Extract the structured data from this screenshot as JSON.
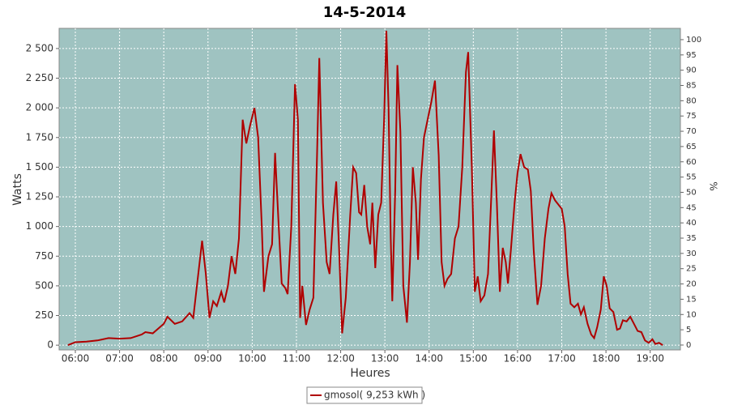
{
  "chart_data": {
    "type": "line",
    "title": "14-5-2014",
    "xlabel": "Heures",
    "ylabel": "Watts",
    "y2label": "%",
    "grid": true,
    "legend": "bottom",
    "background": "#9fc3c1",
    "xlim": [
      "05:38",
      "19:41"
    ],
    "xticks": [
      "06:00",
      "07:00",
      "08:00",
      "09:00",
      "10:00",
      "11:00",
      "12:00",
      "13:00",
      "14:00",
      "15:00",
      "16:00",
      "17:00",
      "18:00",
      "19:00"
    ],
    "ylim": [
      -40,
      2670
    ],
    "yticks": [
      0,
      250,
      500,
      750,
      {
        "value": 1000,
        "label": "1 000"
      },
      {
        "value": 1250,
        "label": "1 250"
      },
      {
        "value": 1500,
        "label": "1 500"
      },
      {
        "value": 1750,
        "label": "1 750"
      },
      {
        "value": 2000,
        "label": "2 000"
      },
      {
        "value": 2250,
        "label": "2 250"
      },
      {
        "value": 2500,
        "label": "2 500"
      }
    ],
    "y2lim": [
      -1.6,
      103.7
    ],
    "y2ticks": [
      0,
      5,
      10,
      15,
      20,
      25,
      30,
      35,
      40,
      45,
      50,
      55,
      60,
      65,
      70,
      75,
      80,
      85,
      90,
      95,
      100
    ],
    "x": [
      "05:50",
      "06:00",
      "06:15",
      "06:30",
      "06:45",
      "07:00",
      "07:15",
      "07:30",
      "07:35",
      "07:45",
      "08:00",
      "08:05",
      "08:15",
      "08:25",
      "08:35",
      "08:40",
      "08:45",
      "08:52",
      "08:57",
      "09:02",
      "09:07",
      "09:12",
      "09:18",
      "09:22",
      "09:27",
      "09:32",
      "09:37",
      "09:42",
      "09:47",
      "09:52",
      "09:57",
      "10:03",
      "10:08",
      "10:13",
      "10:16",
      "10:22",
      "10:27",
      "10:31",
      "10:36",
      "10:40",
      "10:45",
      "10:48",
      "10:53",
      "10:58",
      "11:02",
      "11:05",
      "11:08",
      "11:13",
      "11:18",
      "11:23",
      "11:28",
      "11:31",
      "11:36",
      "11:41",
      "11:45",
      "11:50",
      "11:54",
      "11:58",
      "12:02",
      "12:07",
      "12:13",
      "12:17",
      "12:21",
      "12:25",
      "12:28",
      "12:32",
      "12:36",
      "12:40",
      "12:43",
      "12:47",
      "12:51",
      "12:55",
      "12:59",
      "13:02",
      "13:05",
      "13:08",
      "13:10",
      "13:14",
      "13:17",
      "13:21",
      "13:25",
      "13:30",
      "13:34",
      "13:38",
      "13:42",
      "13:45",
      "13:49",
      "13:53",
      "13:58",
      "14:03",
      "14:08",
      "14:13",
      "14:17",
      "14:21",
      "14:25",
      "14:30",
      "14:35",
      "14:40",
      "14:45",
      "14:50",
      "14:53",
      "14:58",
      "15:02",
      "15:06",
      "15:10",
      "15:15",
      "15:20",
      "15:24",
      "15:28",
      "15:32",
      "15:36",
      "15:40",
      "15:44",
      "15:47",
      "15:51",
      "15:56",
      "16:00",
      "16:04",
      "16:09",
      "16:14",
      "16:18",
      "16:22",
      "16:27",
      "16:32",
      "16:37",
      "16:42",
      "16:46",
      "16:51",
      "16:56",
      "17:00",
      "17:04",
      "17:08",
      "17:12",
      "17:17",
      "17:22",
      "17:26",
      "17:30",
      "17:35",
      "17:40",
      "17:44",
      "17:48",
      "17:53",
      "17:57",
      "18:01",
      "18:05",
      "18:10",
      "18:15",
      "18:19",
      "18:23",
      "18:28",
      "18:33",
      "18:38",
      "18:43",
      "18:48",
      "18:53",
      "18:58",
      "19:03",
      "19:07",
      "19:12",
      "19:17"
    ],
    "series": [
      {
        "name": "gmosol( 9,253 kWh )",
        "color": "#b00000",
        "values": [
          0,
          25,
          30,
          40,
          60,
          55,
          60,
          90,
          110,
          100,
          180,
          240,
          180,
          200,
          270,
          230,
          500,
          880,
          600,
          230,
          370,
          330,
          450,
          360,
          500,
          750,
          600,
          900,
          1900,
          1700,
          1850,
          2000,
          1750,
          1000,
          450,
          750,
          850,
          1620,
          1000,
          520,
          480,
          430,
          1000,
          2200,
          1900,
          230,
          500,
          170,
          300,
          400,
          1600,
          2420,
          1200,
          700,
          600,
          1100,
          1380,
          800,
          100,
          400,
          1100,
          1500,
          1450,
          1120,
          1100,
          1350,
          1000,
          850,
          1200,
          650,
          1100,
          1200,
          1900,
          2650,
          2000,
          900,
          370,
          1300,
          2360,
          1800,
          500,
          190,
          700,
          1500,
          1200,
          720,
          1400,
          1750,
          1900,
          2050,
          2230,
          1600,
          700,
          500,
          560,
          600,
          900,
          1000,
          1500,
          2300,
          2470,
          1500,
          450,
          580,
          370,
          420,
          600,
          1200,
          1810,
          1200,
          450,
          820,
          700,
          520,
          800,
          1200,
          1450,
          1610,
          1500,
          1480,
          1300,
          800,
          340,
          500,
          900,
          1150,
          1280,
          1220,
          1180,
          1150,
          1000,
          600,
          350,
          320,
          350,
          260,
          320,
          180,
          90,
          60,
          150,
          300,
          580,
          500,
          310,
          280,
          130,
          140,
          210,
          200,
          240,
          180,
          120,
          110,
          40,
          20,
          50,
          10,
          20,
          0
        ]
      }
    ]
  }
}
